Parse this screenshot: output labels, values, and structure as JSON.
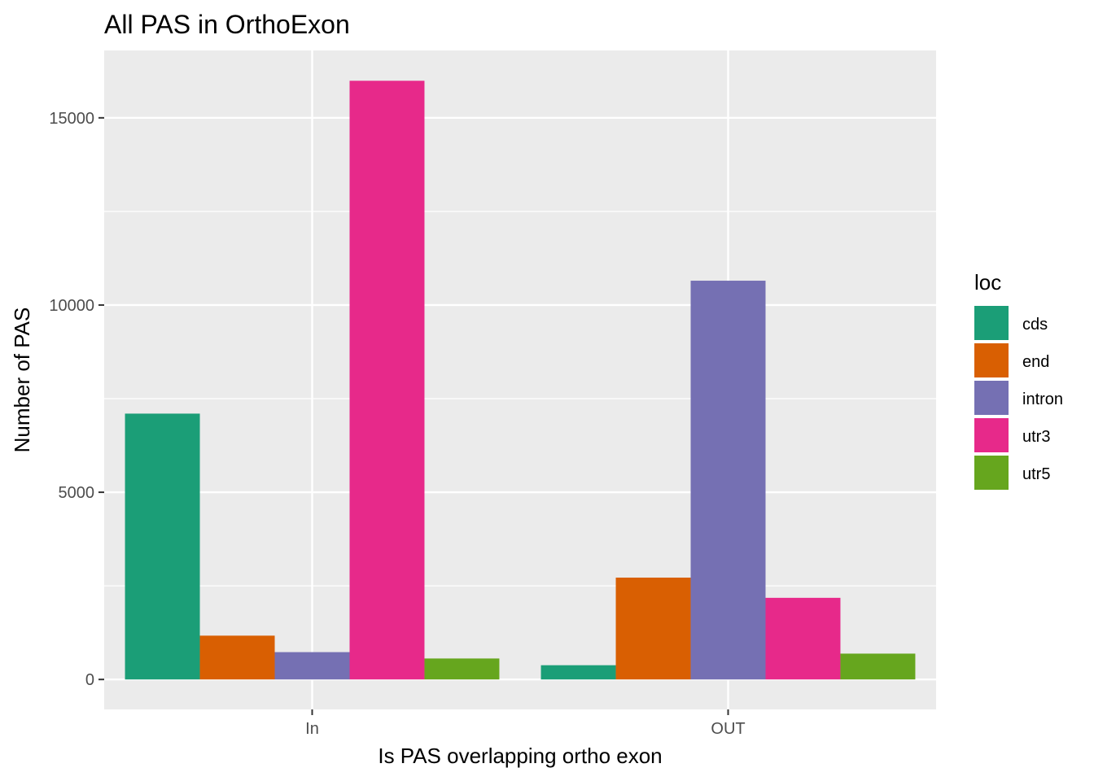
{
  "chart_data": {
    "type": "bar",
    "title": "All PAS in OrthoExon",
    "xlabel": "Is PAS overlapping ortho exon",
    "ylabel": "Number of PAS",
    "categories": [
      "In",
      "OUT"
    ],
    "ylim": [
      -800,
      16800
    ],
    "yticks": [
      0,
      5000,
      10000,
      15000
    ],
    "grid": true,
    "legend": {
      "title": "loc",
      "position": "right"
    },
    "series": [
      {
        "name": "cds",
        "color": "#1B9E77",
        "values": [
          7100,
          380
        ]
      },
      {
        "name": "end",
        "color": "#D95F02",
        "values": [
          1170,
          2720
        ]
      },
      {
        "name": "intron",
        "color": "#7570B3",
        "values": [
          730,
          10650
        ]
      },
      {
        "name": "utr3",
        "color": "#E7298A",
        "values": [
          15990,
          2180
        ]
      },
      {
        "name": "utr5",
        "color": "#66A61E",
        "values": [
          560,
          690
        ]
      }
    ]
  }
}
